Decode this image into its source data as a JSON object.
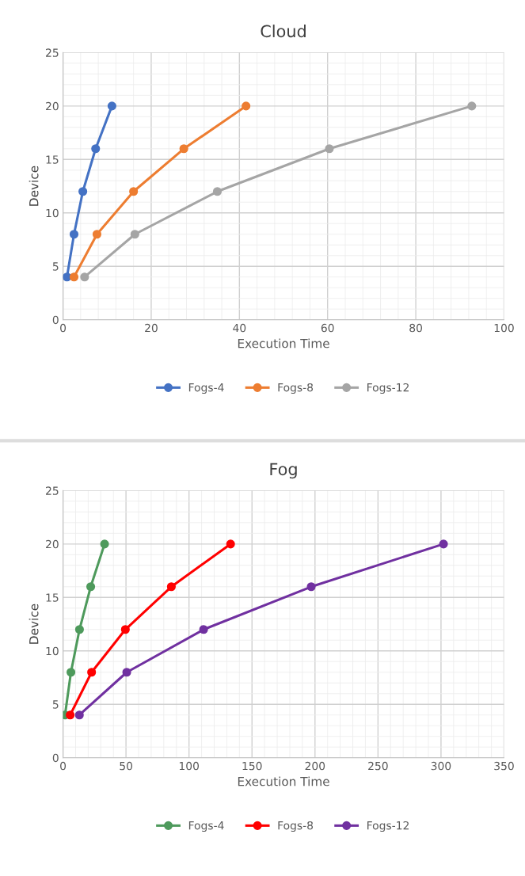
{
  "chart_data": [
    {
      "type": "line",
      "title": "Cloud",
      "xlabel": "Execution Time",
      "ylabel": "Device",
      "xlim": [
        0,
        100
      ],
      "xticks": [
        0,
        20,
        40,
        60,
        80,
        100
      ],
      "ylim": [
        0,
        25
      ],
      "yticks": [
        0,
        5,
        10,
        15,
        20,
        25
      ],
      "grid": true,
      "legend": "bottom",
      "marker": "circle",
      "line_style": "solid",
      "series": [
        {
          "name": "Fogs-4",
          "color": "#4472c4",
          "x": [
            0.9,
            2.5,
            4.5,
            7.4,
            11.1
          ],
          "values": [
            4,
            8,
            12,
            16,
            20
          ]
        },
        {
          "name": "Fogs-8",
          "color": "#ed7d31",
          "x": [
            2.5,
            7.7,
            16,
            27.4,
            41.5
          ],
          "values": [
            4,
            8,
            12,
            16,
            20
          ]
        },
        {
          "name": "Fogs-12",
          "color": "#a5a5a5",
          "x": [
            4.9,
            16.3,
            35,
            60.4,
            92.7
          ],
          "values": [
            4,
            8,
            12,
            16,
            20
          ]
        }
      ]
    },
    {
      "type": "line",
      "title": "Fog",
      "xlabel": "Execution Time",
      "ylabel": "Device",
      "xlim": [
        0,
        350
      ],
      "xticks": [
        0,
        50,
        100,
        150,
        200,
        250,
        300,
        350
      ],
      "ylim": [
        0,
        25
      ],
      "yticks": [
        0,
        5,
        10,
        15,
        20,
        25
      ],
      "grid": true,
      "legend": "bottom",
      "marker": "circle",
      "line_style": "solid",
      "series": [
        {
          "name": "Fogs-4",
          "color": "#4e9a5c",
          "x": [
            1.6,
            6.3,
            13.1,
            22,
            33
          ],
          "values": [
            4,
            8,
            12,
            16,
            20
          ]
        },
        {
          "name": "Fogs-8",
          "color": "#ff0000",
          "x": [
            5.7,
            22.7,
            49.5,
            86,
            133
          ],
          "values": [
            4,
            8,
            12,
            16,
            20
          ]
        },
        {
          "name": "Fogs-12",
          "color": "#7030a0",
          "x": [
            13,
            50.6,
            111.6,
            197,
            302
          ],
          "values": [
            4,
            8,
            12,
            16,
            20
          ]
        }
      ]
    }
  ]
}
